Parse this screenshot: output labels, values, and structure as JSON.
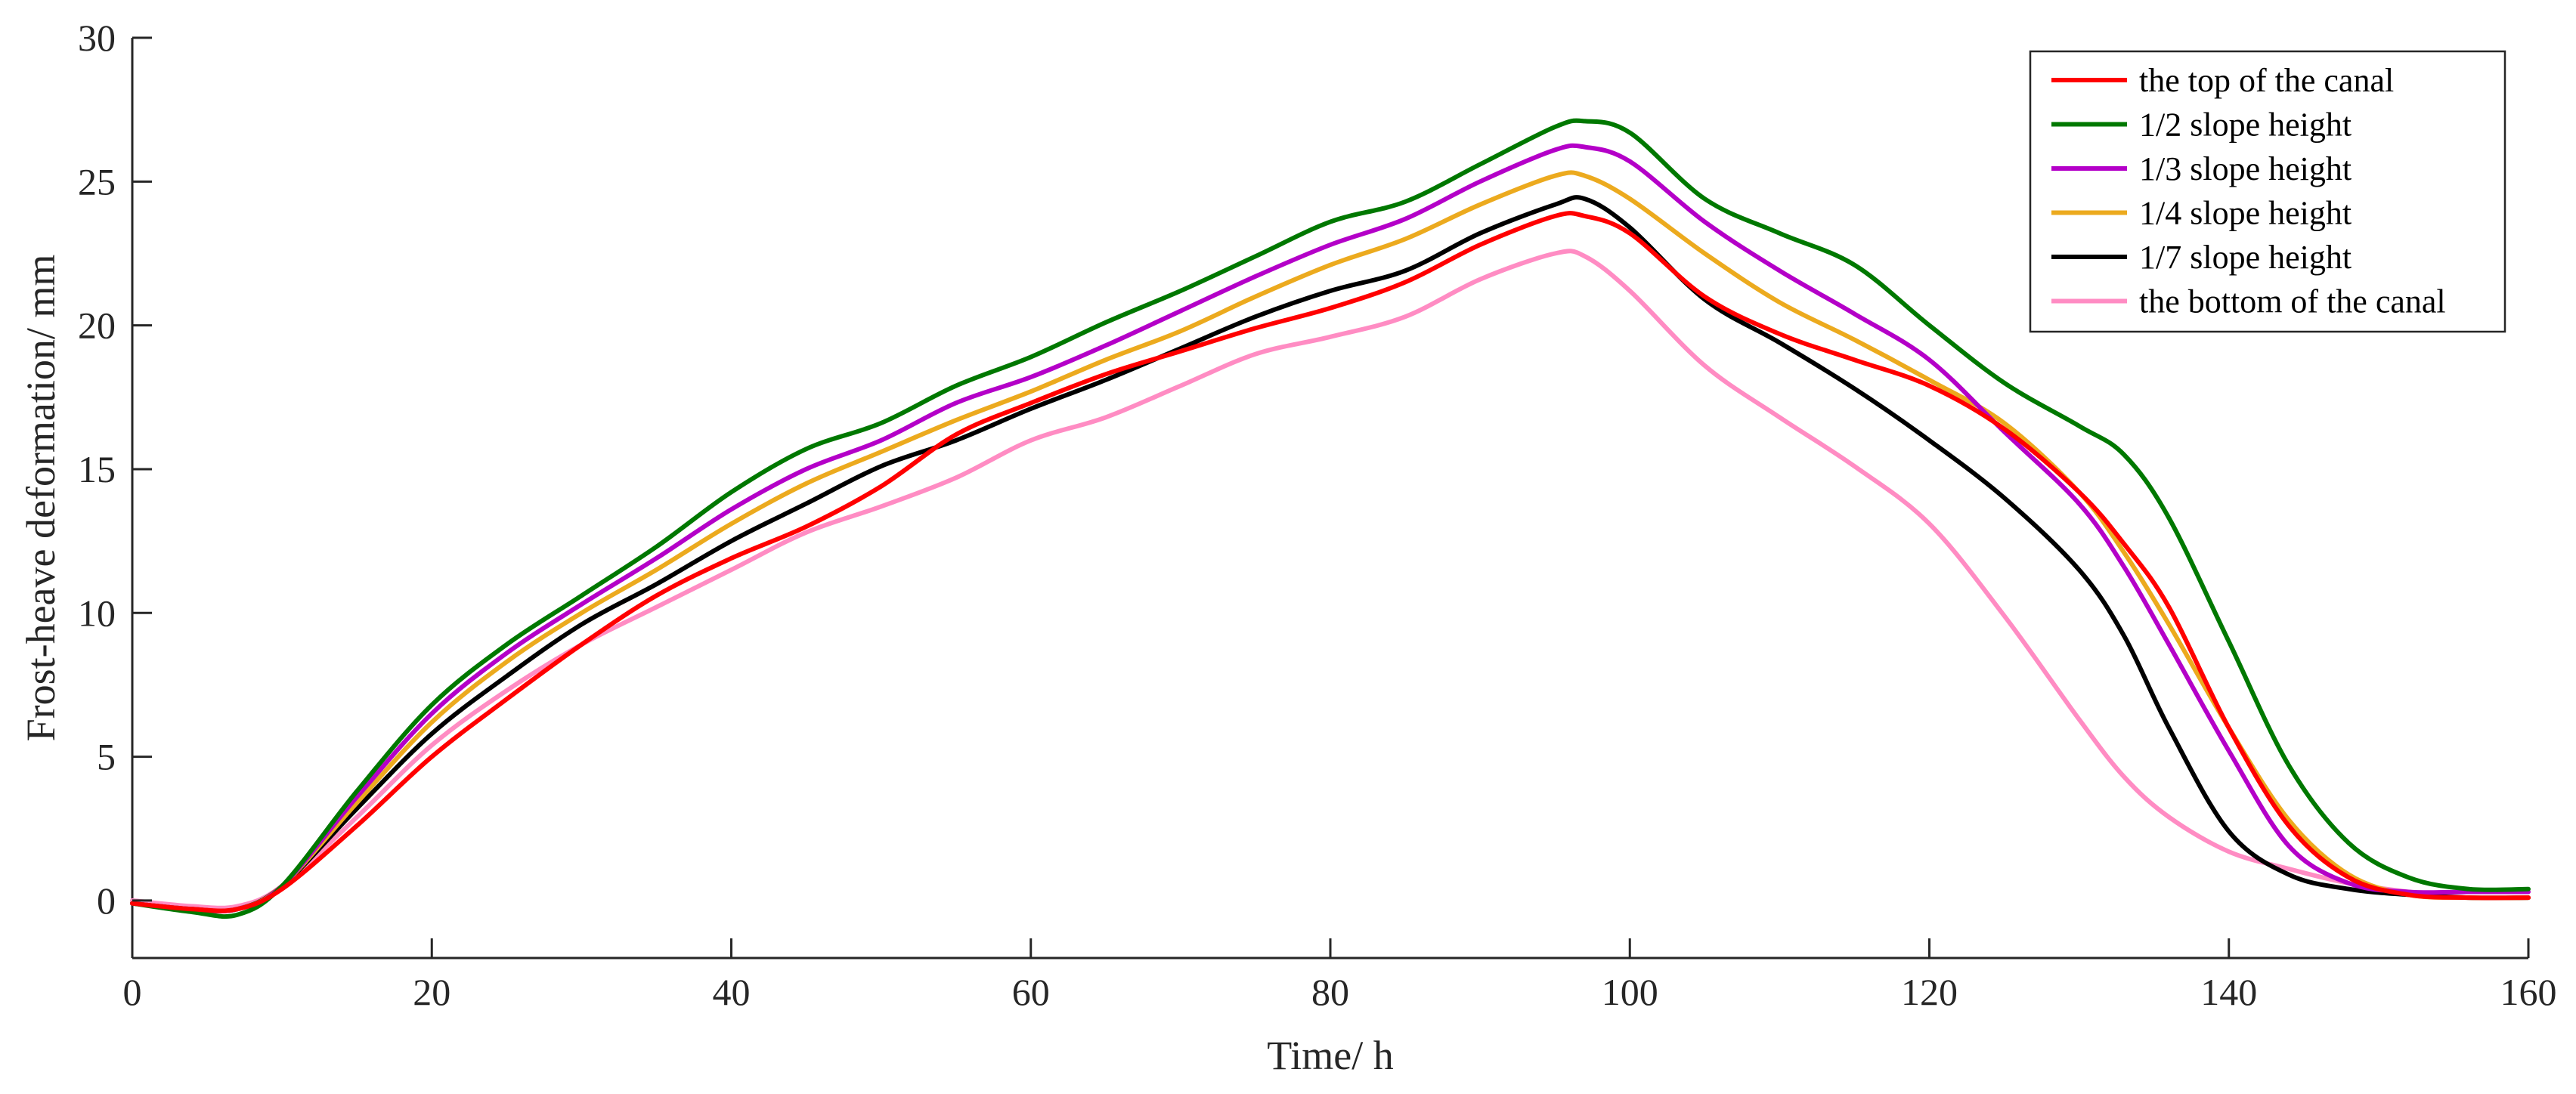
{
  "chart_data": {
    "type": "line",
    "title": "",
    "xlabel": "Time/ h",
    "ylabel": "Frost-heave deformation/ mm",
    "xlim": [
      0,
      160
    ],
    "ylim": [
      -2,
      30
    ],
    "xticks": [
      0,
      20,
      40,
      60,
      80,
      100,
      120,
      140,
      160
    ],
    "yticks": [
      0,
      5,
      10,
      15,
      20,
      25,
      30
    ],
    "grid": false,
    "legend_position": "top-right",
    "x": [
      0,
      4,
      7,
      10,
      15,
      20,
      25,
      30,
      35,
      40,
      45,
      50,
      55,
      60,
      65,
      70,
      75,
      80,
      85,
      90,
      95,
      97,
      100,
      105,
      110,
      115,
      120,
      125,
      130,
      133,
      136,
      140,
      144,
      148,
      152,
      156,
      160
    ],
    "series": [
      {
        "name": "the top of the canal",
        "color": "#ff0000",
        "values": [
          -0.1,
          -0.3,
          -0.3,
          0.4,
          2.6,
          5.0,
          7.0,
          8.9,
          10.6,
          11.9,
          13.0,
          14.4,
          16.2,
          17.3,
          18.3,
          19.1,
          19.9,
          20.6,
          21.5,
          22.8,
          23.8,
          23.8,
          23.2,
          21.0,
          19.7,
          18.8,
          17.9,
          16.4,
          14.2,
          12.4,
          10.2,
          6.0,
          2.6,
          0.8,
          0.2,
          0.1,
          0.1
        ]
      },
      {
        "name": "1/2 slope height",
        "color": "#007800",
        "values": [
          -0.1,
          -0.4,
          -0.5,
          0.5,
          3.8,
          6.8,
          8.9,
          10.6,
          12.3,
          14.2,
          15.7,
          16.6,
          17.9,
          18.9,
          20.1,
          21.2,
          22.4,
          23.6,
          24.3,
          25.6,
          26.9,
          27.1,
          26.7,
          24.4,
          23.2,
          22.1,
          20.0,
          18.0,
          16.5,
          15.5,
          13.3,
          9.0,
          4.7,
          2.0,
          0.8,
          0.4,
          0.4
        ]
      },
      {
        "name": "1/3 slope height",
        "color": "#b400c8",
        "values": [
          -0.1,
          -0.3,
          -0.3,
          0.5,
          3.6,
          6.5,
          8.6,
          10.3,
          11.9,
          13.6,
          15.0,
          16.0,
          17.3,
          18.2,
          19.3,
          20.5,
          21.7,
          22.8,
          23.7,
          25.0,
          26.1,
          26.2,
          25.7,
          23.6,
          21.9,
          20.4,
          18.8,
          16.3,
          13.8,
          11.6,
          8.9,
          5.2,
          1.9,
          0.6,
          0.3,
          0.3,
          0.3
        ]
      },
      {
        "name": "1/4 slope height",
        "color": "#ecaa1e",
        "values": [
          -0.1,
          -0.3,
          -0.3,
          0.5,
          3.4,
          6.2,
          8.3,
          10.0,
          11.5,
          13.1,
          14.5,
          15.6,
          16.7,
          17.7,
          18.8,
          19.8,
          21.0,
          22.1,
          23.0,
          24.2,
          25.2,
          25.2,
          24.4,
          22.5,
          20.8,
          19.5,
          18.1,
          16.6,
          14.2,
          12.1,
          9.6,
          6.0,
          2.8,
          0.9,
          0.2,
          0.1,
          0.1
        ]
      },
      {
        "name": "1/7 slope height",
        "color": "#000000",
        "values": [
          -0.1,
          -0.3,
          -0.3,
          0.5,
          3.2,
          5.8,
          7.8,
          9.6,
          11.0,
          12.5,
          13.8,
          15.1,
          16.0,
          17.1,
          18.1,
          19.2,
          20.3,
          21.2,
          21.9,
          23.2,
          24.2,
          24.4,
          23.4,
          20.9,
          19.4,
          17.8,
          16.0,
          14.0,
          11.5,
          9.2,
          6.0,
          2.4,
          0.9,
          0.4,
          0.2,
          0.1,
          0.1
        ]
      },
      {
        "name": "the bottom of the canal",
        "color": "#ff8cc3",
        "values": [
          0.0,
          -0.2,
          -0.2,
          0.5,
          2.9,
          5.4,
          7.3,
          8.9,
          10.2,
          11.5,
          12.8,
          13.7,
          14.7,
          16.0,
          16.8,
          17.9,
          19.0,
          19.6,
          20.3,
          21.6,
          22.5,
          22.4,
          21.2,
          18.6,
          16.8,
          15.1,
          13.1,
          9.9,
          6.3,
          4.3,
          2.9,
          1.7,
          1.1,
          0.6,
          0.3,
          0.1,
          0.1
        ]
      }
    ]
  }
}
